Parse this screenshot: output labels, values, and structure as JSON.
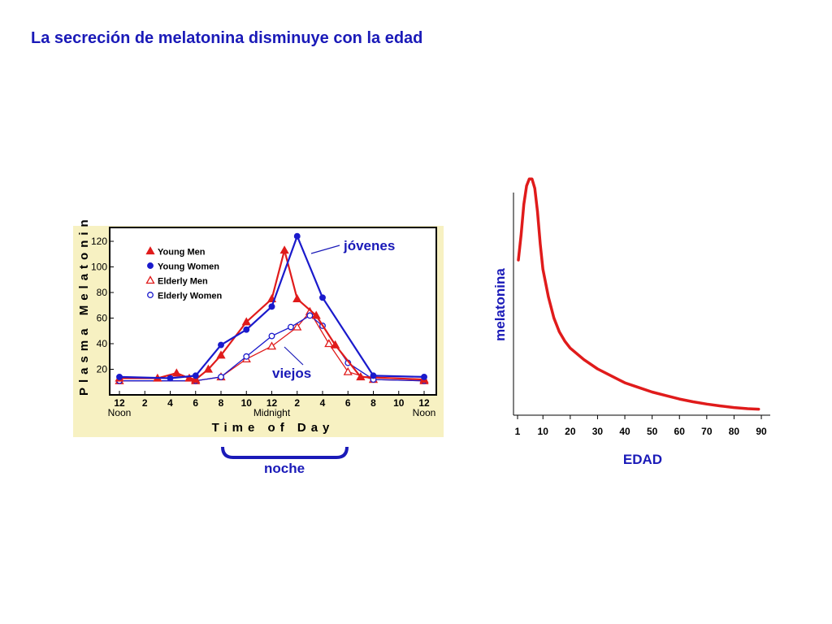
{
  "slide": {
    "title": "La secreción de melatonina disminuye con la edad"
  },
  "annotations": {
    "young": "jóvenes",
    "old": "viejos",
    "night": "noche"
  },
  "colors": {
    "title": "#1a1ab8",
    "young_men": "#e01b1b",
    "young_women": "#1a1acc",
    "elderly_men": "#e01b1b",
    "elderly_women": "#1a1acc",
    "age_curve": "#e01b1b",
    "left_chart_background": "#f7f1c2"
  },
  "chart_data": [
    {
      "type": "line",
      "ylabel": "Plasma Melatonin",
      "xlabel": "Time of Day",
      "ylim": [
        0,
        130
      ],
      "yticks": [
        20,
        40,
        60,
        80,
        100,
        120
      ],
      "x_ticks": [
        "12",
        "2",
        "4",
        "6",
        "8",
        "10",
        "12",
        "2",
        "4",
        "6",
        "8",
        "10",
        "12"
      ],
      "x_sublabels": [
        {
          "tick": 0,
          "text": "Noon"
        },
        {
          "tick": 6,
          "text": "Midnight"
        },
        {
          "tick": 12,
          "text": "Noon"
        }
      ],
      "legend_position": "top-left",
      "series": [
        {
          "name": "Young Men",
          "marker": "filled-triangle",
          "points": [
            [
              0,
              13
            ],
            [
              3,
              13
            ],
            [
              4.5,
              17
            ],
            [
              5.5,
              13
            ],
            [
              6,
              12
            ],
            [
              7,
              20
            ],
            [
              8,
              31
            ],
            [
              10,
              57
            ],
            [
              12,
              75
            ],
            [
              13,
              113
            ],
            [
              14,
              75
            ],
            [
              15.5,
              62
            ],
            [
              17,
              39
            ],
            [
              19,
              14
            ],
            [
              24,
              12
            ]
          ]
        },
        {
          "name": "Young Women",
          "marker": "filled-circle",
          "points": [
            [
              0,
              14
            ],
            [
              4,
              13
            ],
            [
              6,
              15
            ],
            [
              8,
              39
            ],
            [
              10,
              51
            ],
            [
              12,
              69
            ],
            [
              14,
              124
            ],
            [
              16,
              76
            ],
            [
              20,
              15
            ],
            [
              24,
              14
            ]
          ]
        },
        {
          "name": "Elderly Men",
          "marker": "open-triangle",
          "points": [
            [
              0,
              11
            ],
            [
              6,
              11
            ],
            [
              8,
              14
            ],
            [
              10,
              28
            ],
            [
              12,
              38
            ],
            [
              14,
              53
            ],
            [
              15,
              65
            ],
            [
              16.5,
              40
            ],
            [
              18,
              18
            ],
            [
              20,
              12
            ],
            [
              24,
              11
            ]
          ]
        },
        {
          "name": "Elderly Women",
          "marker": "open-circle",
          "points": [
            [
              0,
              11
            ],
            [
              6,
              11
            ],
            [
              8,
              14
            ],
            [
              10,
              30
            ],
            [
              12,
              46
            ],
            [
              13.5,
              53
            ],
            [
              15,
              62
            ],
            [
              16,
              54
            ],
            [
              18,
              25
            ],
            [
              20,
              12
            ],
            [
              24,
              11
            ]
          ]
        }
      ]
    },
    {
      "type": "line",
      "xlabel": "EDAD",
      "ylabel": "melatonina",
      "x_ticks": [
        1,
        10,
        20,
        30,
        40,
        50,
        60,
        70,
        80,
        90
      ],
      "xlim": [
        0,
        93
      ],
      "ylim": [
        0,
        100
      ],
      "series": [
        {
          "name": "",
          "x": [
            1,
            2,
            3,
            4,
            5,
            6,
            7,
            8,
            9,
            10,
            12,
            14,
            16,
            18,
            20,
            25,
            30,
            35,
            40,
            45,
            50,
            55,
            60,
            65,
            70,
            75,
            80,
            85,
            89
          ],
          "y": [
            67,
            78,
            91,
            99,
            102,
            102,
            98,
            88,
            74,
            63,
            51,
            42,
            36,
            32,
            29,
            24,
            20,
            17,
            14,
            12,
            10,
            8.5,
            7,
            5.8,
            4.8,
            4,
            3.3,
            2.8,
            2.6
          ]
        }
      ]
    }
  ]
}
